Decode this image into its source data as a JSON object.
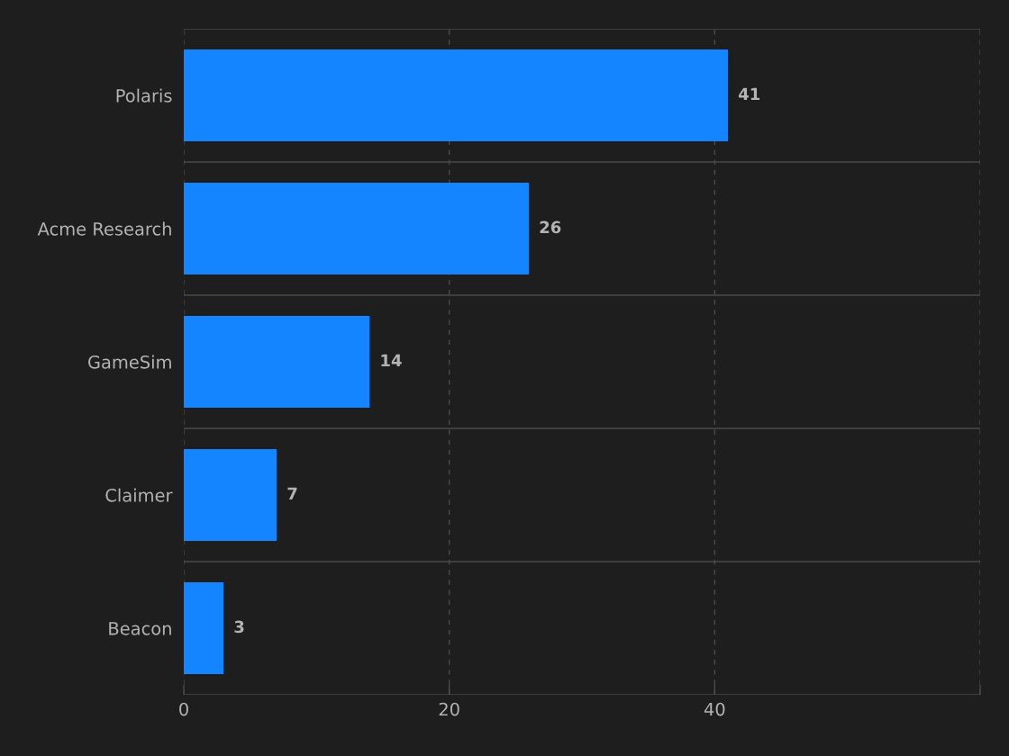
{
  "chart_data": {
    "type": "bar",
    "orientation": "horizontal",
    "categories": [
      "Polaris",
      "Acme Research",
      "GameSim",
      "Claimer",
      "Beacon"
    ],
    "values": [
      41,
      26,
      14,
      7,
      3
    ],
    "color": "#1485ff",
    "xlim": [
      0,
      60
    ],
    "xticks": [
      0,
      20,
      40,
      {
        "value": 60,
        "label": null
      }
    ],
    "grid": true,
    "data_labels": true
  }
}
